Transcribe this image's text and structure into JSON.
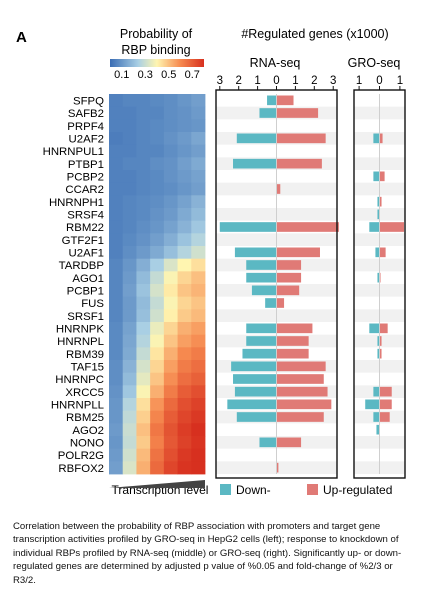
{
  "panel_label": "A",
  "caption": "Correlation between the probability of RBP association with promoters and target gene transcription activities profiled by GRO-seq in HepG2 cells (left); response to knockdown of individual RBPs profiled by RNA-seq (middle) or GRO-seq (right). Significantly up- or down-regulated genes are determined by adjusted p value of %0.05 and fold-change of %2/3 or R3/2.",
  "colors": {
    "down": "#5bb8c3",
    "up": "#e07a76",
    "heat_low": "#3a6db4",
    "heat_mid": "#fff5b0",
    "heat_high": "#d7301f"
  },
  "chart_data": [
    {
      "type": "heatmap",
      "colorbar_title_line1": "Probability of",
      "colorbar_title_line2": "RBP binding",
      "colorbar_ticks": [
        "0.1",
        "0.3",
        "0.5",
        "0.7"
      ],
      "colorbar_range": [
        0.0,
        0.8
      ],
      "xlabel": "Transcription level",
      "rows": [
        "SFPQ",
        "SAFB2",
        "PRPF4",
        "U2AF2",
        "HNRNPUL1",
        "PTBP1",
        "PCBP2",
        "CCAR2",
        "HNRNPH1",
        "SRSF4",
        "RBM22",
        "GTF2F1",
        "U2AF1",
        "TARDBP",
        "AGO1",
        "PCBP1",
        "FUS",
        "SRSF1",
        "HNRNPK",
        "HNRNPL",
        "RBM39",
        "TAF15",
        "HNRNPC",
        "XRCC5",
        "HNRNPLL",
        "RBM25",
        "AGO2",
        "NONO",
        "POLR2G",
        "RBFOX2"
      ],
      "values": [
        [
          0.05,
          0.06,
          0.06,
          0.07,
          0.08,
          0.1,
          0.12
        ],
        [
          0.05,
          0.05,
          0.06,
          0.06,
          0.08,
          0.09,
          0.11
        ],
        [
          0.05,
          0.05,
          0.06,
          0.07,
          0.08,
          0.09,
          0.1
        ],
        [
          0.04,
          0.05,
          0.06,
          0.07,
          0.09,
          0.11,
          0.14
        ],
        [
          0.05,
          0.05,
          0.06,
          0.06,
          0.08,
          0.1,
          0.12
        ],
        [
          0.05,
          0.06,
          0.06,
          0.08,
          0.09,
          0.12,
          0.15
        ],
        [
          0.05,
          0.05,
          0.06,
          0.07,
          0.09,
          0.11,
          0.13
        ],
        [
          0.05,
          0.05,
          0.06,
          0.07,
          0.08,
          0.1,
          0.12
        ],
        [
          0.05,
          0.06,
          0.07,
          0.08,
          0.1,
          0.13,
          0.17
        ],
        [
          0.05,
          0.06,
          0.07,
          0.09,
          0.11,
          0.15,
          0.19
        ],
        [
          0.05,
          0.06,
          0.08,
          0.1,
          0.13,
          0.17,
          0.22
        ],
        [
          0.05,
          0.07,
          0.09,
          0.12,
          0.16,
          0.21,
          0.26
        ],
        [
          0.05,
          0.08,
          0.11,
          0.15,
          0.2,
          0.26,
          0.31
        ],
        [
          0.06,
          0.1,
          0.16,
          0.24,
          0.33,
          0.4,
          0.44
        ],
        [
          0.06,
          0.11,
          0.19,
          0.29,
          0.39,
          0.46,
          0.5
        ],
        [
          0.06,
          0.12,
          0.21,
          0.32,
          0.42,
          0.49,
          0.52
        ],
        [
          0.06,
          0.11,
          0.19,
          0.29,
          0.39,
          0.46,
          0.49
        ],
        [
          0.06,
          0.11,
          0.2,
          0.31,
          0.41,
          0.48,
          0.51
        ],
        [
          0.07,
          0.13,
          0.24,
          0.36,
          0.46,
          0.53,
          0.56
        ],
        [
          0.07,
          0.14,
          0.26,
          0.39,
          0.49,
          0.56,
          0.59
        ],
        [
          0.07,
          0.15,
          0.29,
          0.43,
          0.53,
          0.6,
          0.63
        ],
        [
          0.08,
          0.17,
          0.32,
          0.46,
          0.56,
          0.63,
          0.66
        ],
        [
          0.08,
          0.19,
          0.35,
          0.49,
          0.59,
          0.66,
          0.69
        ],
        [
          0.09,
          0.22,
          0.39,
          0.53,
          0.63,
          0.7,
          0.73
        ],
        [
          0.1,
          0.26,
          0.44,
          0.58,
          0.67,
          0.73,
          0.76
        ],
        [
          0.1,
          0.28,
          0.47,
          0.61,
          0.7,
          0.75,
          0.78
        ],
        [
          0.11,
          0.3,
          0.5,
          0.64,
          0.72,
          0.77,
          0.8
        ],
        [
          0.1,
          0.29,
          0.48,
          0.62,
          0.71,
          0.76,
          0.79
        ],
        [
          0.11,
          0.31,
          0.51,
          0.65,
          0.73,
          0.78,
          0.8
        ],
        [
          0.12,
          0.33,
          0.53,
          0.67,
          0.75,
          0.79,
          0.8
        ]
      ]
    },
    {
      "type": "bar",
      "title": "RNA-seq",
      "xticks": [
        "3",
        "2",
        "1",
        "0",
        "1",
        "2",
        "3"
      ],
      "xlim": [
        -3.2,
        3.2
      ],
      "categories": [
        "SFPQ",
        "SAFB2",
        "PRPF4",
        "U2AF2",
        "HNRNPUL1",
        "PTBP1",
        "PCBP2",
        "CCAR2",
        "HNRNPH1",
        "SRSF4",
        "RBM22",
        "GTF2F1",
        "U2AF1",
        "TARDBP",
        "AGO1",
        "PCBP1",
        "FUS",
        "SRSF1",
        "HNRNPK",
        "HNRNPL",
        "RBM39",
        "TAF15",
        "HNRNPC",
        "XRCC5",
        "HNRNPLL",
        "RBM25",
        "AGO2",
        "NONO",
        "POLR2G",
        "RBFOX2"
      ],
      "series": [
        {
          "name": "Down-",
          "values": [
            0.5,
            0.9,
            0,
            2.1,
            0,
            2.3,
            0,
            0,
            0,
            0,
            3.0,
            0,
            2.2,
            1.6,
            1.6,
            1.3,
            0.6,
            0,
            1.6,
            1.6,
            1.8,
            2.4,
            2.3,
            2.2,
            2.6,
            2.1,
            0,
            0.9,
            0,
            0
          ]
        },
        {
          "name": "Up-regulated",
          "values": [
            0.9,
            2.2,
            0,
            2.6,
            0,
            2.4,
            0,
            0.2,
            0,
            0,
            3.3,
            0,
            2.3,
            1.3,
            1.3,
            1.2,
            0.4,
            0,
            1.9,
            1.7,
            1.7,
            2.6,
            2.5,
            2.7,
            2.9,
            2.5,
            0,
            1.3,
            0,
            0.1
          ]
        }
      ]
    },
    {
      "type": "bar",
      "title": "GRO-seq",
      "xticks": [
        "1",
        "0",
        "1"
      ],
      "xlim": [
        -1.25,
        1.25
      ],
      "categories": [
        "SFPQ",
        "SAFB2",
        "PRPF4",
        "U2AF2",
        "HNRNPUL1",
        "PTBP1",
        "PCBP2",
        "CCAR2",
        "HNRNPH1",
        "SRSF4",
        "RBM22",
        "GTF2F1",
        "U2AF1",
        "TARDBP",
        "AGO1",
        "PCBP1",
        "FUS",
        "SRSF1",
        "HNRNPK",
        "HNRNPL",
        "RBM39",
        "TAF15",
        "HNRNPC",
        "XRCC5",
        "HNRNPLL",
        "RBM25",
        "AGO2",
        "NONO",
        "POLR2G",
        "RBFOX2"
      ],
      "series": [
        {
          "name": "Down-",
          "values": [
            0,
            0,
            0,
            0.3,
            0,
            0,
            0.3,
            0,
            0.1,
            0.1,
            0.5,
            0,
            0.2,
            0,
            0.1,
            0,
            0,
            0,
            0.5,
            0.1,
            0.1,
            0,
            0,
            0.3,
            0.7,
            0.3,
            0.15,
            0,
            0,
            0
          ]
        },
        {
          "name": "Up-regulated",
          "values": [
            0,
            0,
            0,
            0.15,
            0,
            0,
            0.25,
            0,
            0.1,
            0,
            1.2,
            0,
            0.3,
            0,
            0.05,
            0,
            0,
            0,
            0.4,
            0.1,
            0.1,
            0,
            0,
            0.6,
            0.6,
            0.5,
            0,
            0,
            0,
            0
          ]
        }
      ]
    }
  ],
  "header": {
    "regulated_title": "#Regulated genes (x1000)"
  },
  "legend": {
    "down_label": "Down-",
    "up_label": "Up-regulated"
  }
}
